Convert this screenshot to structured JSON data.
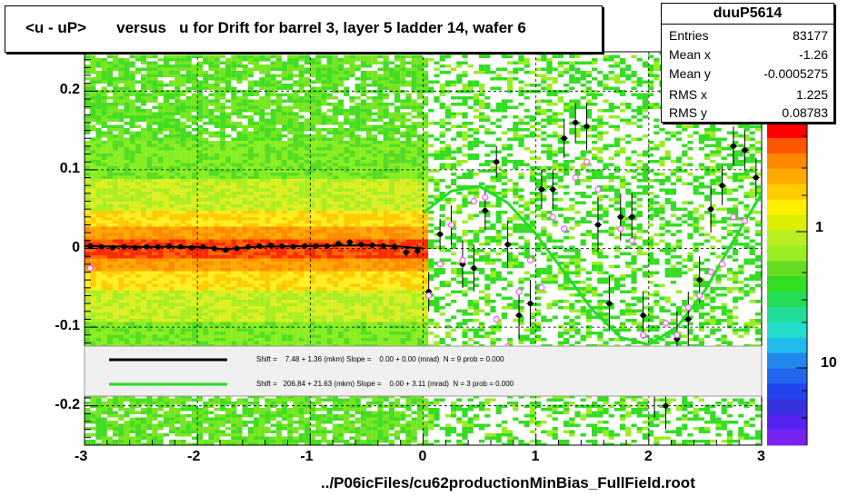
{
  "title": "<u - uP>       versus   u for Drift for barrel 3, layer 5 ladder 14, wafer 6",
  "stats": {
    "name": "duuP5614",
    "rows": [
      {
        "key": "Entries",
        "value": "83177"
      },
      {
        "key": "Mean x",
        "value": "-1.26"
      },
      {
        "key": "Mean y",
        "value": "-0.0005275"
      },
      {
        "key": "RMS x",
        "value": "1.225"
      },
      {
        "key": "RMS y",
        "value": "0.08783"
      }
    ]
  },
  "legend": {
    "entries": [
      {
        "color": "#000000",
        "text": "Shift =    7.48 + 1.36 (mkm) Slope =    0.00 + 0.00 (mrad)  N = 9 prob = 0.000"
      },
      {
        "color": "#22dd22",
        "text": "Shift =   206.84 + 21.63 (mkm) Slope =    0.00 + 3.11 (mrad)  N = 3 prob = 0.000"
      }
    ]
  },
  "footer": "../P06icFiles/cu62productionMinBias_FullField.root",
  "colors": {
    "black_fit": "#000000",
    "green_fit": "#22dd22",
    "profile_open": "#ff55ff"
  },
  "chart_data": {
    "type": "heatmap",
    "title": "<u - uP>       versus   u for Drift for barrel 3, layer 5 ladder 14, wafer 6",
    "xlim": [
      -3,
      3
    ],
    "ylim": [
      -0.25,
      0.25
    ],
    "x_ticks": [
      -3,
      -2,
      -1,
      0,
      1,
      2,
      3
    ],
    "x_tick_labels": [
      "-3",
      "-2",
      "-1",
      "0",
      "1",
      "2",
      "3"
    ],
    "y_ticks": [
      -0.2,
      -0.1,
      0,
      0.1,
      0.2
    ],
    "y_tick_labels": [
      "-0.2",
      "-0.1",
      "0",
      "0.1",
      "0.2"
    ],
    "z_scale": "log",
    "z_tick_labels": [
      "1",
      "10"
    ],
    "grid": true,
    "series": [
      {
        "marker": "filled-circle",
        "x": [
          -2.95,
          -2.85,
          -2.75,
          -2.65,
          -2.55,
          -2.45,
          -2.35,
          -2.25,
          -2.15,
          -2.05,
          -1.95,
          -1.85,
          -1.75,
          -1.65,
          -1.55,
          -1.45,
          -1.35,
          -1.25,
          -1.15,
          -1.05,
          -0.95,
          -0.85,
          -0.75,
          -0.65,
          -0.55,
          -0.45,
          -0.35,
          -0.25,
          -0.15,
          -0.05,
          0.05,
          0.15,
          0.25,
          0.35,
          0.45,
          0.55,
          0.65,
          0.75,
          0.85,
          0.95,
          1.05,
          1.15,
          1.25,
          1.35,
          1.45,
          1.55,
          1.65,
          1.75,
          1.85,
          1.95,
          2.05,
          2.15,
          2.25,
          2.35,
          2.45,
          2.55,
          2.65,
          2.75,
          2.85,
          2.95
        ],
        "y": [
          0.003,
          0.002,
          0.001,
          0.002,
          0.001,
          0.002,
          0.002,
          0.003,
          0.002,
          0.001,
          0.002,
          0.0,
          -0.002,
          0.0,
          0.002,
          0.003,
          0.004,
          0.003,
          0.002,
          0.003,
          0.003,
          0.003,
          0.006,
          0.008,
          0.005,
          0.004,
          0.003,
          0.002,
          -0.005,
          -0.003,
          -0.055,
          0.018,
          0.03,
          -0.02,
          -0.025,
          0.048,
          0.11,
          0.005,
          -0.085,
          -0.07,
          0.075,
          0.075,
          0.14,
          0.16,
          0.155,
          0.03,
          -0.07,
          0.04,
          0.04,
          -0.085,
          -0.18,
          -0.2,
          -0.115,
          -0.09,
          -0.04,
          0.05,
          0.08,
          0.13,
          0.125,
          0.09
        ],
        "yerr": [
          0.004,
          0.003,
          0.003,
          0.003,
          0.003,
          0.003,
          0.003,
          0.003,
          0.003,
          0.003,
          0.003,
          0.003,
          0.003,
          0.003,
          0.003,
          0.003,
          0.003,
          0.003,
          0.003,
          0.003,
          0.003,
          0.003,
          0.004,
          0.004,
          0.004,
          0.004,
          0.004,
          0.005,
          0.006,
          0.008,
          0.025,
          0.02,
          0.025,
          0.03,
          0.03,
          0.025,
          0.02,
          0.03,
          0.03,
          0.03,
          0.025,
          0.025,
          0.025,
          0.025,
          0.03,
          0.035,
          0.035,
          0.03,
          0.03,
          0.03,
          0.035,
          0.03,
          0.035,
          0.035,
          0.03,
          0.03,
          0.025,
          0.025,
          0.025,
          0.025
        ]
      },
      {
        "marker": "open-circle",
        "color": "#ff55ff",
        "x": [
          -2.95,
          0.05,
          0.15,
          0.25,
          0.35,
          0.45,
          0.55,
          0.65,
          0.75,
          0.85,
          0.95,
          1.05,
          1.15,
          1.25,
          1.35,
          1.45,
          1.55,
          1.65,
          1.75,
          1.85,
          1.95,
          2.05,
          2.15,
          2.25,
          2.35,
          2.45,
          2.55,
          2.65,
          2.75,
          2.85
        ],
        "y": [
          -0.025,
          -0.06,
          -0.02,
          0.03,
          -0.015,
          0.06,
          0.065,
          -0.09,
          -0.125,
          -0.055,
          -0.015,
          -0.05,
          0.04,
          0.025,
          0.09,
          0.11,
          0.075,
          -0.13,
          0.025,
          0.01,
          -0.11,
          -0.15,
          -0.095,
          -0.11,
          -0.075,
          -0.06,
          -0.03,
          -0.02,
          0.04,
          0.035
        ]
      }
    ],
    "fits": [
      {
        "color": "#000000",
        "legend": "Shift =    7.48 + 1.36 (mkm) Slope =    0.00 + 0.00 (mrad)  N = 9 prob = 0.000",
        "x": [
          -3,
          -2.5,
          -2,
          -1.75,
          -1.5,
          -1,
          -0.5,
          -0.25,
          0
        ],
        "y": [
          0.003,
          0.002,
          0.002,
          -0.001,
          0.002,
          0.003,
          0.004,
          0.003,
          0.0
        ]
      },
      {
        "color": "#22dd22",
        "legend": "Shift =   206.84 + 21.63 (mkm) Slope =    0.00 + 3.11 (mrad)  N = 3 prob = 0.000",
        "x": [
          0,
          0.25,
          0.5,
          0.75,
          1,
          1.25,
          1.5,
          1.75,
          2,
          2.25,
          2.5,
          2.75,
          3
        ],
        "y": [
          0.045,
          0.073,
          0.079,
          0.058,
          0.018,
          -0.03,
          -0.078,
          -0.113,
          -0.122,
          -0.1,
          -0.053,
          0.01,
          0.07
        ]
      }
    ]
  }
}
